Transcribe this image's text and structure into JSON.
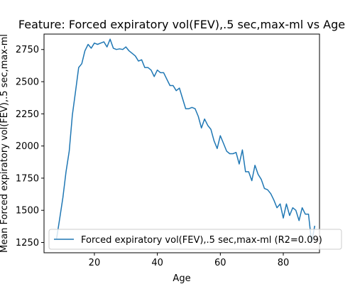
{
  "chart_data": {
    "type": "line",
    "title": "Feature: Forced expiratory vol(FEV),.5 sec,max-ml vs Age",
    "xlabel": "Age",
    "ylabel": "Mean Forced expiratory vol(FEV),.5 sec,max-ml",
    "xlim": [
      4.0,
      91.5
    ],
    "ylim": [
      1170,
      2870
    ],
    "xticks": [
      20,
      40,
      60,
      80
    ],
    "yticks": [
      1250,
      1500,
      1750,
      2000,
      2250,
      2500,
      2750
    ],
    "grid": false,
    "legend_position": "lower-right",
    "series": [
      {
        "name": "Forced expiratory vol(FEV),.5 sec,max-ml (R2=0.09)",
        "color": "#1f77b4",
        "x": [
          8,
          9,
          10,
          11,
          12,
          13,
          14,
          15,
          16,
          17,
          18,
          19,
          20,
          21,
          22,
          23,
          24,
          25,
          26,
          27,
          28,
          29,
          30,
          31,
          32,
          33,
          34,
          35,
          36,
          37,
          38,
          39,
          40,
          41,
          42,
          43,
          44,
          45,
          46,
          47,
          48,
          49,
          50,
          51,
          52,
          53,
          54,
          55,
          56,
          57,
          58,
          59,
          60,
          61,
          62,
          63,
          64,
          65,
          66,
          67,
          68,
          69,
          70,
          71,
          72,
          73,
          74,
          75,
          76,
          77,
          78,
          79,
          80,
          81,
          82,
          83,
          84,
          85,
          86,
          87,
          88,
          89,
          90
        ],
        "y": [
          1280,
          1440,
          1600,
          1800,
          1960,
          2240,
          2420,
          2610,
          2640,
          2740,
          2790,
          2760,
          2800,
          2790,
          2800,
          2810,
          2770,
          2830,
          2760,
          2750,
          2755,
          2750,
          2770,
          2740,
          2720,
          2700,
          2660,
          2670,
          2610,
          2610,
          2590,
          2540,
          2590,
          2570,
          2570,
          2520,
          2470,
          2470,
          2430,
          2450,
          2370,
          2290,
          2290,
          2300,
          2290,
          2230,
          2140,
          2210,
          2160,
          2130,
          2040,
          1980,
          2080,
          2020,
          1960,
          1940,
          1940,
          1950,
          1860,
          1970,
          1800,
          1800,
          1730,
          1850,
          1780,
          1740,
          1670,
          1660,
          1630,
          1580,
          1520,
          1550,
          1440,
          1550,
          1460,
          1520,
          1500,
          1420,
          1520,
          1470,
          1470,
          1250,
          1380
        ]
      }
    ]
  }
}
